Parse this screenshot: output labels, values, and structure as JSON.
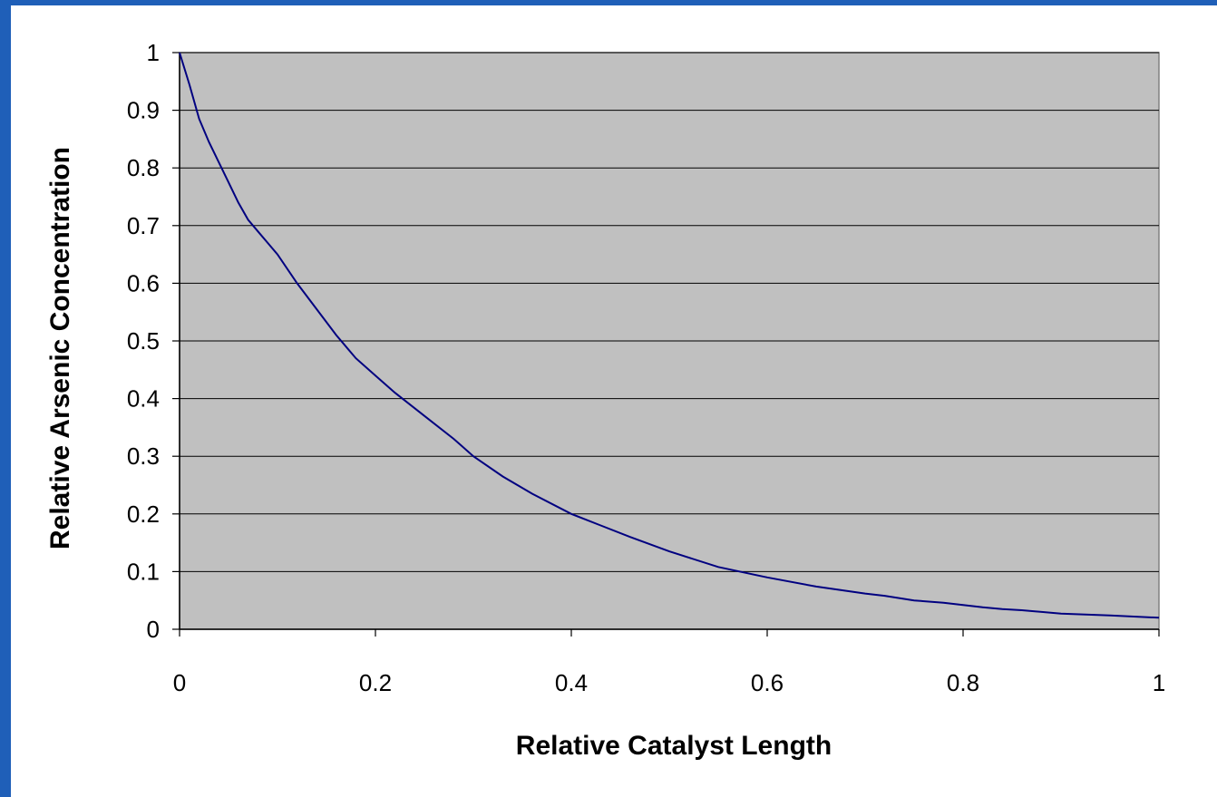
{
  "chart_data": {
    "type": "line",
    "title": "",
    "xlabel": "Relative Catalyst Length",
    "ylabel": "Relative Arsenic Concentration",
    "xlim": [
      0,
      1
    ],
    "ylim": [
      0,
      1
    ],
    "x_ticks": [
      "0",
      "0.2",
      "0.4",
      "0.6",
      "0.8",
      "1"
    ],
    "y_ticks": [
      "0",
      "0.1",
      "0.2",
      "0.3",
      "0.4",
      "0.5",
      "0.6",
      "0.7",
      "0.8",
      "0.9",
      "1"
    ],
    "grid": "horizontal",
    "legend": "none",
    "colors": {
      "frame": "#1f5fb8",
      "plot_background": "#c0c0c0",
      "line": "#000080",
      "gridline": "#000000"
    },
    "series": [
      {
        "x": [
          0,
          0.01,
          0.02,
          0.03,
          0.04,
          0.05,
          0.06,
          0.07,
          0.08,
          0.09,
          0.1,
          0.12,
          0.14,
          0.16,
          0.18,
          0.2,
          0.22,
          0.25,
          0.28,
          0.3,
          0.33,
          0.36,
          0.4,
          0.43,
          0.46,
          0.5,
          0.55,
          0.6,
          0.65,
          0.7,
          0.72,
          0.75,
          0.78,
          0.8,
          0.82,
          0.84,
          0.86,
          0.9,
          0.95,
          1
        ],
        "y": [
          1,
          0.945,
          0.885,
          0.845,
          0.81,
          0.775,
          0.74,
          0.71,
          0.69,
          0.67,
          0.65,
          0.6,
          0.555,
          0.51,
          0.47,
          0.44,
          0.41,
          0.37,
          0.33,
          0.3,
          0.265,
          0.235,
          0.2,
          0.18,
          0.16,
          0.135,
          0.108,
          0.09,
          0.074,
          0.062,
          0.058,
          0.05,
          0.046,
          0.042,
          0.038,
          0.035,
          0.033,
          0.027,
          0.024,
          0.02
        ]
      }
    ]
  }
}
